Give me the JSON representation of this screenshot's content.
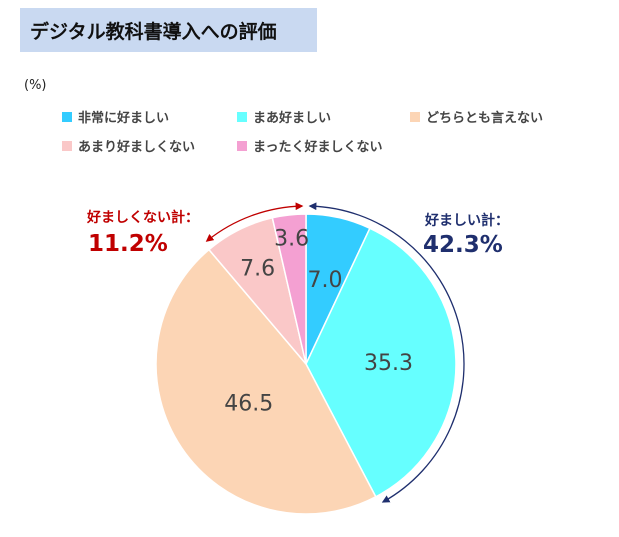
{
  "title": "デジタル教科書導入への評価",
  "unit": "(%)",
  "colors": {
    "title_bg": "#c9d9f1",
    "favorable": "#1f2f6e",
    "unfavorable": "#c00000"
  },
  "chart_data": {
    "type": "pie",
    "title": "デジタル教科書導入への評価",
    "unit": "(%)",
    "legend_position": "top",
    "categories": [
      "非常に好ましい",
      "まあ好ましい",
      "どちらとも言えない",
      "あまり好ましくない",
      "まったく好ましくない"
    ],
    "values": [
      7.0,
      35.3,
      46.5,
      7.6,
      3.6
    ],
    "value_labels": [
      "7.0",
      "35.3",
      "46.5",
      "7.6",
      "3.6"
    ],
    "colors": [
      "#33ccff",
      "#66ffff",
      "#fcd5b5",
      "#fac8c8",
      "#f4a0d2"
    ],
    "start_angle_deg": 0,
    "direction": "clockwise",
    "annotations": [
      {
        "label": "好ましい計：",
        "value": "42.3%",
        "color": "#1f2f6e"
      },
      {
        "label": "好ましくない計：",
        "value": "11.2%",
        "color": "#c00000"
      }
    ]
  }
}
